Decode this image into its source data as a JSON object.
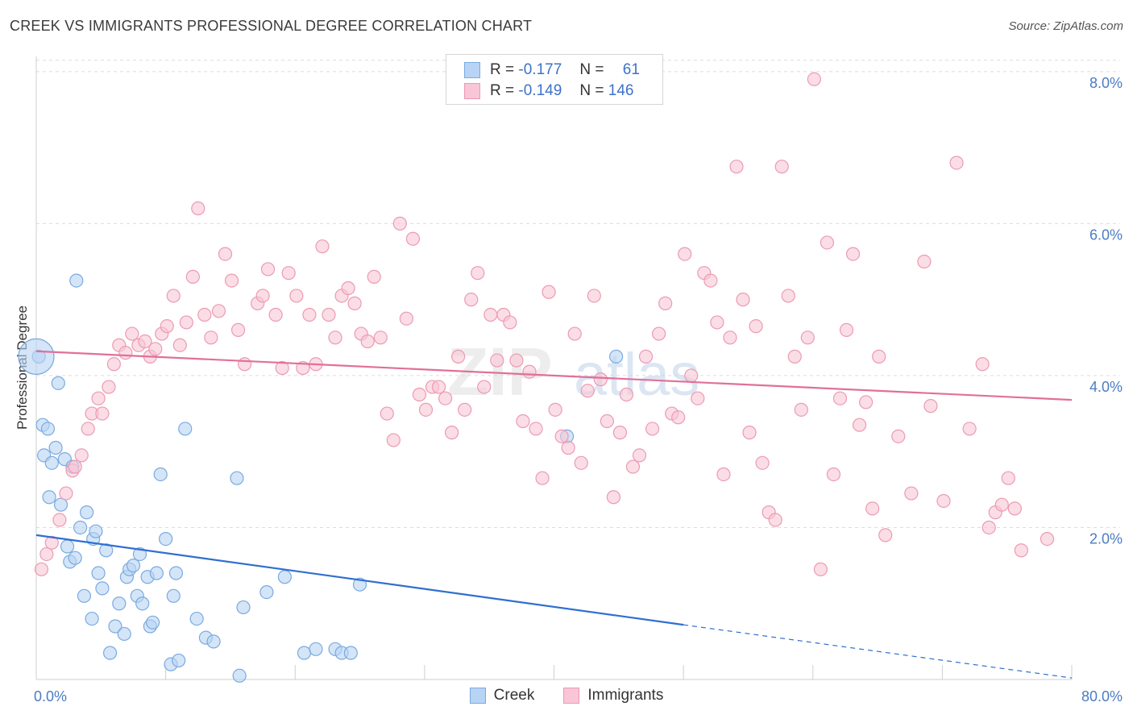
{
  "title": "CREEK VS IMMIGRANTS PROFESSIONAL DEGREE CORRELATION CHART",
  "source": "Source: ZipAtlas.com",
  "watermark_zip": "ZIP",
  "watermark_atlas": "atlas",
  "legend_top": [
    {
      "r_label": "R =",
      "r_value": "-0.177",
      "n_label": "N =",
      "n_value": "61"
    },
    {
      "r_label": "R =",
      "r_value": "-0.149",
      "n_label": "N =",
      "n_value": "146"
    }
  ],
  "legend_bottom": [
    "Creek",
    "Immigrants"
  ],
  "colors": {
    "creek_fill": "#b8d4f4",
    "creek_stroke": "#7aaae0",
    "creek_line": "#2f6fd0",
    "immigrants_fill": "#f8c6d6",
    "immigrants_stroke": "#ec9ab4",
    "immigrants_line": "#e0709a",
    "grid": "#dcdcdc",
    "tick": "#4a7cc4"
  },
  "chart_data": {
    "type": "scatter",
    "title": "CREEK VS IMMIGRANTS PROFESSIONAL DEGREE CORRELATION CHART",
    "xlabel": "",
    "ylabel": "Professional Degree",
    "xlim": [
      0,
      80
    ],
    "ylim": [
      0,
      8.2
    ],
    "x_tick_labels": [
      {
        "v": 0,
        "label": "0.0%"
      },
      {
        "v": 80,
        "label": "80.0%"
      }
    ],
    "y_tick_labels": [
      {
        "v": 2,
        "label": "2.0%"
      },
      {
        "v": 4,
        "label": "4.0%"
      },
      {
        "v": 6,
        "label": "6.0%"
      },
      {
        "v": 8,
        "label": "8.0%"
      }
    ],
    "grid": true,
    "legend": "top-center",
    "series": [
      {
        "name": "Creek",
        "R": -0.177,
        "N": 61,
        "trend": {
          "x0": 0,
          "y0": 1.9,
          "x1": 50,
          "y1": 0.72,
          "dash_to_x": 80,
          "dash_to_y": 0.02
        },
        "points": [
          [
            0.2,
            4.25
          ],
          [
            0.5,
            3.35
          ],
          [
            0.6,
            2.95
          ],
          [
            0.9,
            3.3
          ],
          [
            1.0,
            2.4
          ],
          [
            1.2,
            2.85
          ],
          [
            1.5,
            3.05
          ],
          [
            1.7,
            3.9
          ],
          [
            1.9,
            2.3
          ],
          [
            2.2,
            2.9
          ],
          [
            2.4,
            1.75
          ],
          [
            2.6,
            1.55
          ],
          [
            2.8,
            2.8
          ],
          [
            3.0,
            1.6
          ],
          [
            3.1,
            5.25
          ],
          [
            3.4,
            2.0
          ],
          [
            3.7,
            1.1
          ],
          [
            3.9,
            2.2
          ],
          [
            4.3,
            0.8
          ],
          [
            4.4,
            1.85
          ],
          [
            4.6,
            1.95
          ],
          [
            4.8,
            1.4
          ],
          [
            5.1,
            1.2
          ],
          [
            5.4,
            1.7
          ],
          [
            5.7,
            0.35
          ],
          [
            6.1,
            0.7
          ],
          [
            6.4,
            1.0
          ],
          [
            6.8,
            0.6
          ],
          [
            7.0,
            1.35
          ],
          [
            7.2,
            1.45
          ],
          [
            7.5,
            1.5
          ],
          [
            7.8,
            1.1
          ],
          [
            8.0,
            1.65
          ],
          [
            8.2,
            1.0
          ],
          [
            8.6,
            1.35
          ],
          [
            8.8,
            0.7
          ],
          [
            9.0,
            0.75
          ],
          [
            9.3,
            1.4
          ],
          [
            9.6,
            2.7
          ],
          [
            10.0,
            1.85
          ],
          [
            10.4,
            0.2
          ],
          [
            10.6,
            1.1
          ],
          [
            10.8,
            1.4
          ],
          [
            11.0,
            0.25
          ],
          [
            11.5,
            3.3
          ],
          [
            12.4,
            0.8
          ],
          [
            13.1,
            0.55
          ],
          [
            13.7,
            0.5
          ],
          [
            15.5,
            2.65
          ],
          [
            15.7,
            0.05
          ],
          [
            16.0,
            0.95
          ],
          [
            17.8,
            1.15
          ],
          [
            19.2,
            1.35
          ],
          [
            20.7,
            0.35
          ],
          [
            21.6,
            0.4
          ],
          [
            23.1,
            0.4
          ],
          [
            23.6,
            0.35
          ],
          [
            24.3,
            0.35
          ],
          [
            25.0,
            1.25
          ],
          [
            41.0,
            3.2
          ],
          [
            44.8,
            4.25
          ]
        ]
      },
      {
        "name": "Immigrants",
        "R": -0.149,
        "N": 146,
        "trend": {
          "x0": 0,
          "y0": 4.32,
          "x1": 80,
          "y1": 3.68
        },
        "points": [
          [
            0.4,
            1.45
          ],
          [
            0.8,
            1.65
          ],
          [
            1.2,
            1.8
          ],
          [
            1.8,
            2.1
          ],
          [
            2.3,
            2.45
          ],
          [
            2.8,
            2.75
          ],
          [
            3.0,
            2.8
          ],
          [
            3.5,
            2.95
          ],
          [
            4.0,
            3.3
          ],
          [
            4.3,
            3.5
          ],
          [
            4.8,
            3.7
          ],
          [
            5.1,
            3.5
          ],
          [
            5.6,
            3.85
          ],
          [
            6.0,
            4.15
          ],
          [
            6.4,
            4.4
          ],
          [
            6.9,
            4.3
          ],
          [
            7.4,
            4.55
          ],
          [
            7.9,
            4.4
          ],
          [
            8.4,
            4.45
          ],
          [
            8.8,
            4.25
          ],
          [
            9.2,
            4.35
          ],
          [
            9.7,
            4.55
          ],
          [
            10.1,
            4.65
          ],
          [
            10.6,
            5.05
          ],
          [
            11.1,
            4.4
          ],
          [
            11.6,
            4.7
          ],
          [
            12.1,
            5.3
          ],
          [
            12.5,
            6.2
          ],
          [
            13.0,
            4.8
          ],
          [
            13.5,
            4.5
          ],
          [
            14.1,
            4.85
          ],
          [
            14.6,
            5.6
          ],
          [
            15.1,
            5.25
          ],
          [
            15.6,
            4.6
          ],
          [
            16.1,
            4.15
          ],
          [
            17.1,
            4.95
          ],
          [
            17.5,
            5.05
          ],
          [
            17.9,
            5.4
          ],
          [
            18.5,
            4.8
          ],
          [
            19.0,
            4.1
          ],
          [
            19.5,
            5.35
          ],
          [
            20.1,
            5.05
          ],
          [
            20.6,
            4.1
          ],
          [
            21.1,
            4.8
          ],
          [
            21.6,
            4.15
          ],
          [
            22.1,
            5.7
          ],
          [
            22.6,
            4.8
          ],
          [
            23.1,
            4.5
          ],
          [
            23.6,
            5.05
          ],
          [
            24.1,
            5.15
          ],
          [
            24.6,
            4.95
          ],
          [
            25.1,
            4.55
          ],
          [
            25.6,
            4.45
          ],
          [
            26.1,
            5.3
          ],
          [
            26.6,
            4.5
          ],
          [
            27.1,
            3.5
          ],
          [
            27.6,
            3.15
          ],
          [
            28.1,
            6.0
          ],
          [
            28.6,
            4.75
          ],
          [
            29.1,
            5.8
          ],
          [
            29.6,
            3.75
          ],
          [
            30.1,
            3.55
          ],
          [
            30.6,
            3.85
          ],
          [
            31.1,
            3.85
          ],
          [
            31.6,
            3.7
          ],
          [
            32.1,
            3.25
          ],
          [
            32.6,
            4.25
          ],
          [
            33.1,
            3.55
          ],
          [
            33.6,
            5.0
          ],
          [
            34.1,
            5.35
          ],
          [
            34.6,
            3.85
          ],
          [
            35.1,
            4.8
          ],
          [
            35.6,
            4.2
          ],
          [
            36.1,
            4.8
          ],
          [
            36.6,
            4.7
          ],
          [
            37.1,
            4.2
          ],
          [
            37.6,
            3.4
          ],
          [
            38.1,
            4.05
          ],
          [
            38.6,
            3.3
          ],
          [
            39.1,
            2.65
          ],
          [
            39.6,
            5.1
          ],
          [
            40.1,
            3.55
          ],
          [
            40.6,
            3.2
          ],
          [
            41.1,
            3.05
          ],
          [
            41.6,
            4.55
          ],
          [
            42.1,
            2.85
          ],
          [
            42.6,
            3.8
          ],
          [
            43.1,
            5.05
          ],
          [
            43.6,
            3.95
          ],
          [
            44.1,
            3.4
          ],
          [
            44.6,
            2.4
          ],
          [
            45.1,
            3.25
          ],
          [
            45.6,
            3.75
          ],
          [
            46.1,
            2.8
          ],
          [
            46.6,
            2.95
          ],
          [
            47.1,
            4.25
          ],
          [
            47.6,
            3.3
          ],
          [
            48.1,
            4.55
          ],
          [
            48.6,
            4.95
          ],
          [
            49.1,
            3.5
          ],
          [
            49.6,
            3.45
          ],
          [
            50.1,
            5.6
          ],
          [
            50.6,
            4.0
          ],
          [
            51.1,
            3.7
          ],
          [
            51.6,
            5.35
          ],
          [
            52.1,
            5.25
          ],
          [
            52.6,
            4.7
          ],
          [
            53.1,
            2.7
          ],
          [
            53.6,
            4.5
          ],
          [
            54.1,
            6.75
          ],
          [
            54.6,
            5.0
          ],
          [
            55.1,
            3.25
          ],
          [
            55.6,
            4.65
          ],
          [
            56.1,
            2.85
          ],
          [
            56.6,
            2.2
          ],
          [
            57.1,
            2.1
          ],
          [
            57.6,
            6.75
          ],
          [
            58.1,
            5.05
          ],
          [
            58.6,
            4.25
          ],
          [
            59.1,
            3.55
          ],
          [
            59.6,
            4.5
          ],
          [
            60.1,
            7.9
          ],
          [
            60.6,
            1.45
          ],
          [
            61.1,
            5.75
          ],
          [
            61.6,
            2.7
          ],
          [
            62.1,
            3.7
          ],
          [
            62.6,
            4.6
          ],
          [
            63.1,
            5.6
          ],
          [
            63.6,
            3.35
          ],
          [
            64.1,
            3.65
          ],
          [
            64.6,
            2.25
          ],
          [
            65.1,
            4.25
          ],
          [
            65.6,
            1.9
          ],
          [
            66.6,
            3.2
          ],
          [
            67.6,
            2.45
          ],
          [
            68.6,
            5.5
          ],
          [
            69.1,
            3.6
          ],
          [
            70.1,
            2.35
          ],
          [
            71.1,
            6.8
          ],
          [
            72.1,
            3.3
          ],
          [
            73.1,
            4.15
          ],
          [
            73.6,
            2.0
          ],
          [
            74.1,
            2.2
          ],
          [
            74.6,
            2.3
          ],
          [
            75.1,
            2.65
          ],
          [
            75.6,
            2.25
          ],
          [
            76.1,
            1.7
          ],
          [
            78.1,
            1.85
          ]
        ]
      }
    ]
  }
}
